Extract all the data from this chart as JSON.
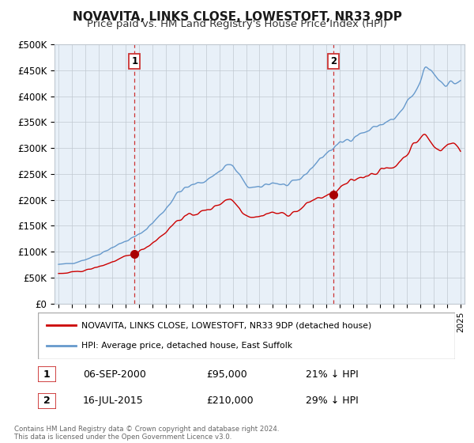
{
  "title": "NOVAVITA, LINKS CLOSE, LOWESTOFT, NR33 9DP",
  "subtitle": "Price paid vs. HM Land Registry's House Price Index (HPI)",
  "ylabel_ticks": [
    "£0",
    "£50K",
    "£100K",
    "£150K",
    "£200K",
    "£250K",
    "£300K",
    "£350K",
    "£400K",
    "£450K",
    "£500K"
  ],
  "ytick_values": [
    0,
    50000,
    100000,
    150000,
    200000,
    250000,
    300000,
    350000,
    400000,
    450000,
    500000
  ],
  "ylim": [
    0,
    500000
  ],
  "xlim_start": 1994.7,
  "xlim_end": 2025.3,
  "marker1": {
    "year": 2000.67,
    "value": 95000,
    "label": "1",
    "date": "06-SEP-2000",
    "price": "£95,000",
    "pct": "21% ↓ HPI"
  },
  "marker2": {
    "year": 2015.54,
    "value": 210000,
    "label": "2",
    "date": "16-JUL-2015",
    "price": "£210,000",
    "pct": "29% ↓ HPI"
  },
  "legend_line1": "NOVAVITA, LINKS CLOSE, LOWESTOFT, NR33 9DP (detached house)",
  "legend_line2": "HPI: Average price, detached house, East Suffolk",
  "footer": "Contains HM Land Registry data © Crown copyright and database right 2024.\nThis data is licensed under the Open Government Licence v3.0.",
  "line_color_red": "#cc0000",
  "line_color_blue": "#6699cc",
  "plot_bg_color": "#e8f0f8",
  "background_color": "#ffffff",
  "grid_color": "#c0c8d0",
  "title_fontsize": 11,
  "subtitle_fontsize": 9.5
}
